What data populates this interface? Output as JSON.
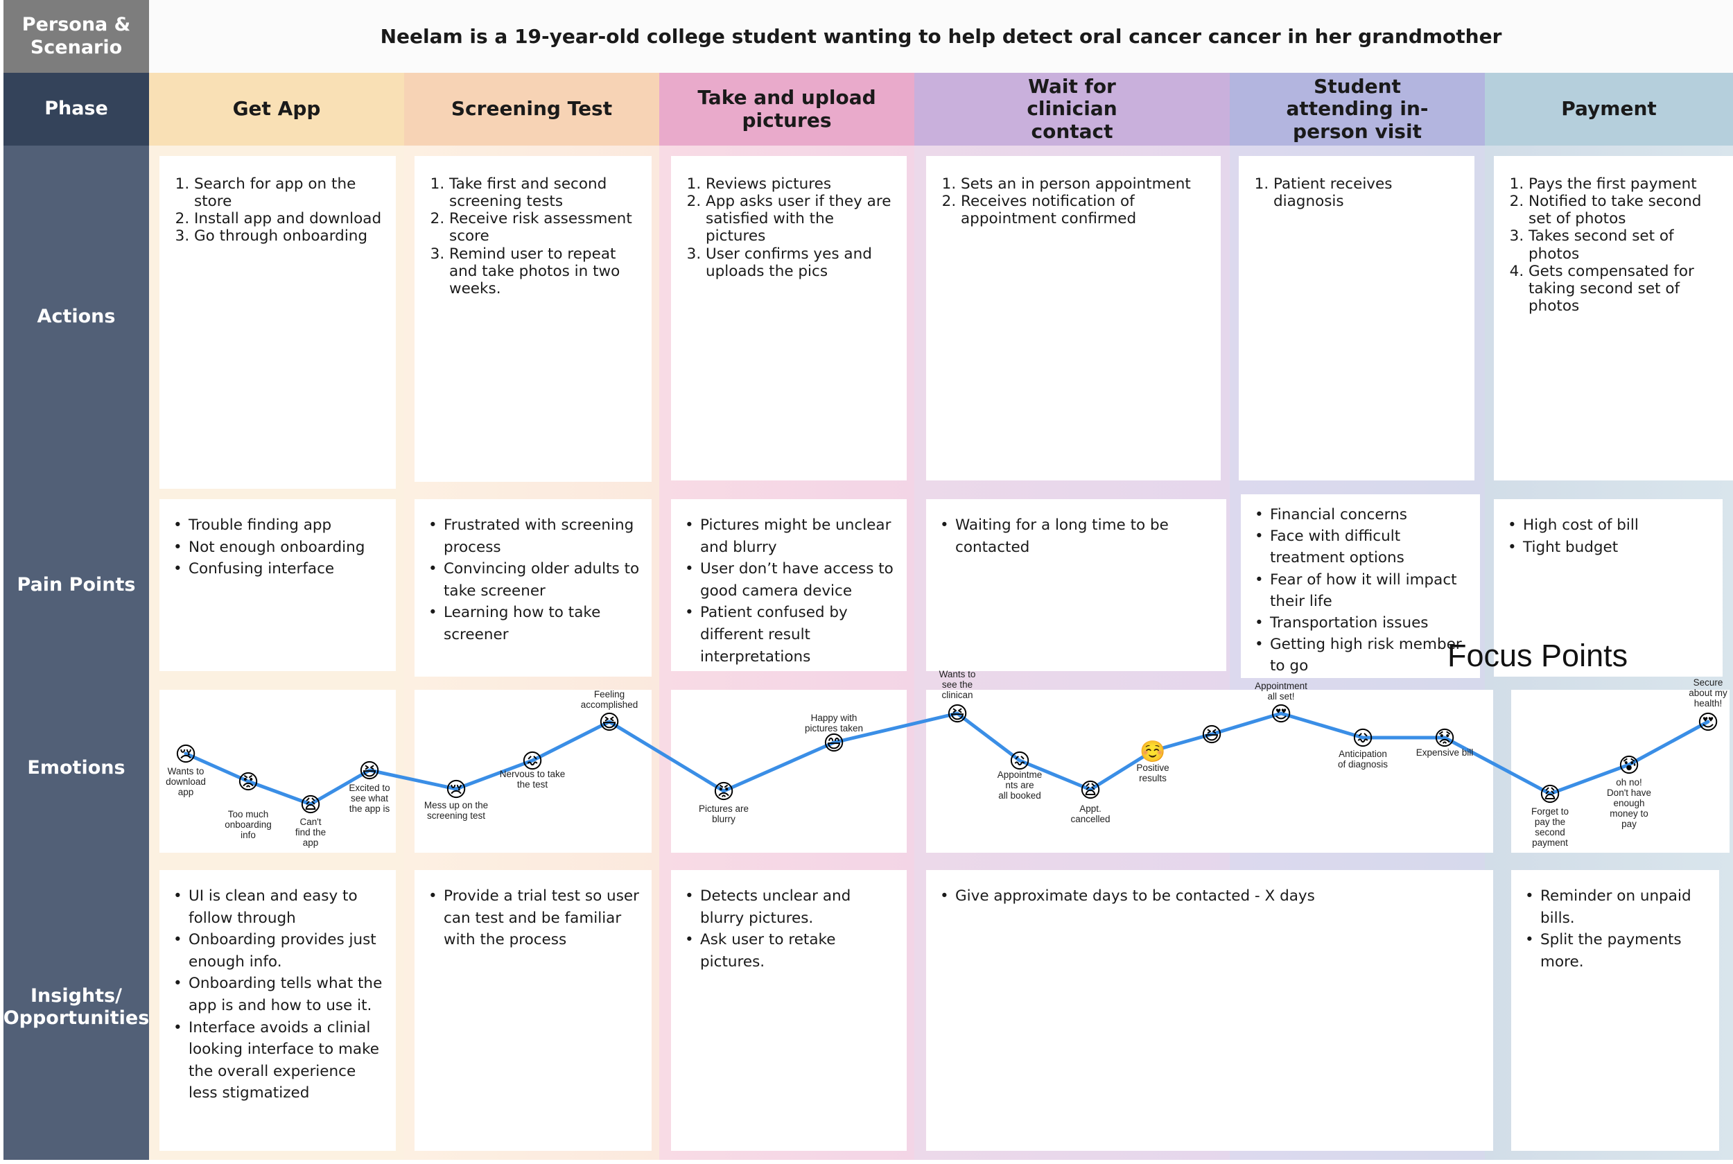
{
  "labels": {
    "persona": "Persona & Scenario",
    "phase": "Phase",
    "actions": "Actions",
    "pain_points": "Pain Points",
    "emotions": "Emotions",
    "insights": "Insights/ Opportunities"
  },
  "scenario": "Neelam is a 19-year-old college student wanting to help detect oral cancer cancer in her grandmother",
  "focus_label": "Focus Points",
  "colors": {
    "label_bg": "#526077",
    "phase_label_bg": "#34435a",
    "persona_bg": "#7d7d7d",
    "line": "#3a8ee6",
    "phase_get_app": "#f9e0b5",
    "phase_screening": "#f7d3b5",
    "phase_upload": "#e9aacb",
    "phase_wait": "#c9b0dc",
    "phase_visit": "#b3b5df",
    "phase_payment": "#b5cfdc"
  },
  "phases": [
    {
      "title": "Get App",
      "actions": [
        "Search for app on the store",
        "Install app and download",
        "Go through onboarding"
      ],
      "pain_points": [
        "Trouble finding app",
        "Not enough onboarding",
        "Confusing interface"
      ],
      "insights": [
        "UI is clean and easy to follow through",
        "Onboarding provides just enough info.",
        "Onboarding tells what the app is and how to use it.",
        "Interface avoids a clinial looking interface to make the overall experience less stigmatized"
      ]
    },
    {
      "title": "Screening Test",
      "actions": [
        "Take first and second screening tests",
        "Receive risk assessment score",
        "Remind user to repeat and take photos in two weeks."
      ],
      "pain_points": [
        "Frustrated with screening process",
        "Convincing older adults to take screener",
        "Learning how to take screener"
      ],
      "insights": [
        "Provide a trial test so user can test and be familiar with the process"
      ]
    },
    {
      "title": "Take and upload pictures",
      "actions": [
        "Reviews pictures",
        "App asks user if they are satisfied with the pictures",
        "User confirms yes and uploads the pics"
      ],
      "pain_points": [
        "Pictures might be unclear and blurry",
        "User don’t have access to good camera device",
        "Patient confused by different result interpretations"
      ],
      "insights": [
        "Detects unclear and blurry pictures.",
        "Ask user to retake pictures."
      ]
    },
    {
      "title": "Wait for clinician contact",
      "actions": [
        "Sets an in person appointment",
        "Receives notification of appointment confirmed"
      ],
      "pain_points": [
        "Waiting for a long time to be contacted"
      ],
      "insights": [
        "Give approximate days to be contacted - X days"
      ]
    },
    {
      "title": "Student attending in-person visit",
      "actions": [
        "Patient receives diagnosis"
      ],
      "pain_points": [
        "Financial concerns",
        "Face with difficult treatment options",
        "Fear of how it will impact their life",
        "Transportation issues",
        "Getting high risk member to go"
      ],
      "insights": []
    },
    {
      "title": "Payment",
      "actions": [
        "Pays the first payment",
        "Notified to take second set of photos",
        "Takes second set of photos",
        "Gets compensated for taking second set of photos"
      ],
      "pain_points": [
        "High cost of bill",
        "Tight budget"
      ],
      "insights": [
        "Reminder on unpaid bills.",
        "Split the payments more."
      ]
    }
  ],
  "emotions": [
    {
      "caption": "Wants to download app",
      "emoji": "😢",
      "icon": "crying-face"
    },
    {
      "caption": "Too much onboarding info",
      "emoji": "😡",
      "icon": "angry-face"
    },
    {
      "caption": "Can't find the app",
      "emoji": "😩",
      "icon": "weary-face"
    },
    {
      "caption": "Excited to see what the app is",
      "emoji": "😆",
      "icon": "grinning-squinting-face"
    },
    {
      "caption": "Mess up on the screening test",
      "emoji": "😢",
      "icon": "crying-face"
    },
    {
      "caption": "Nervous to take the test",
      "emoji": "😖",
      "icon": "confounded-face"
    },
    {
      "caption": "Feeling accomplished",
      "emoji": "😆",
      "icon": "grinning-squinting-face"
    },
    {
      "caption": "Pictures are blurry",
      "emoji": "😡",
      "icon": "angry-face"
    },
    {
      "caption": "Happy with pictures taken",
      "emoji": "😄",
      "icon": "grinning-face"
    },
    {
      "caption": "Wants to see the clinican",
      "emoji": "😆",
      "icon": "grinning-squinting-face"
    },
    {
      "caption": "Appointme nts are all booked",
      "emoji": "😖",
      "icon": "confounded-face"
    },
    {
      "caption": "Appt. cancelled",
      "emoji": "😩",
      "icon": "weary-face"
    },
    {
      "caption": "Positive results",
      "emoji": "☺️",
      "icon": "smiling-face"
    },
    {
      "caption": "",
      "emoji": "😆",
      "icon": "grinning-squinting-face"
    },
    {
      "caption": "Appointment all set!",
      "emoji": "😍",
      "icon": "heart-eyes-face"
    },
    {
      "caption": "Anticipation of diagnosis",
      "emoji": "😖",
      "icon": "confounded-face"
    },
    {
      "caption": "Expensive bill",
      "emoji": "😟",
      "icon": "worried-face"
    },
    {
      "caption": "Forget to pay the second payment",
      "emoji": "😩",
      "icon": "weary-face"
    },
    {
      "caption": "oh no! Don't have enough money to pay",
      "emoji": "😰",
      "icon": "anxious-face"
    },
    {
      "caption": "Secure about my health!",
      "emoji": "😍",
      "icon": "heart-eyes-face"
    }
  ]
}
